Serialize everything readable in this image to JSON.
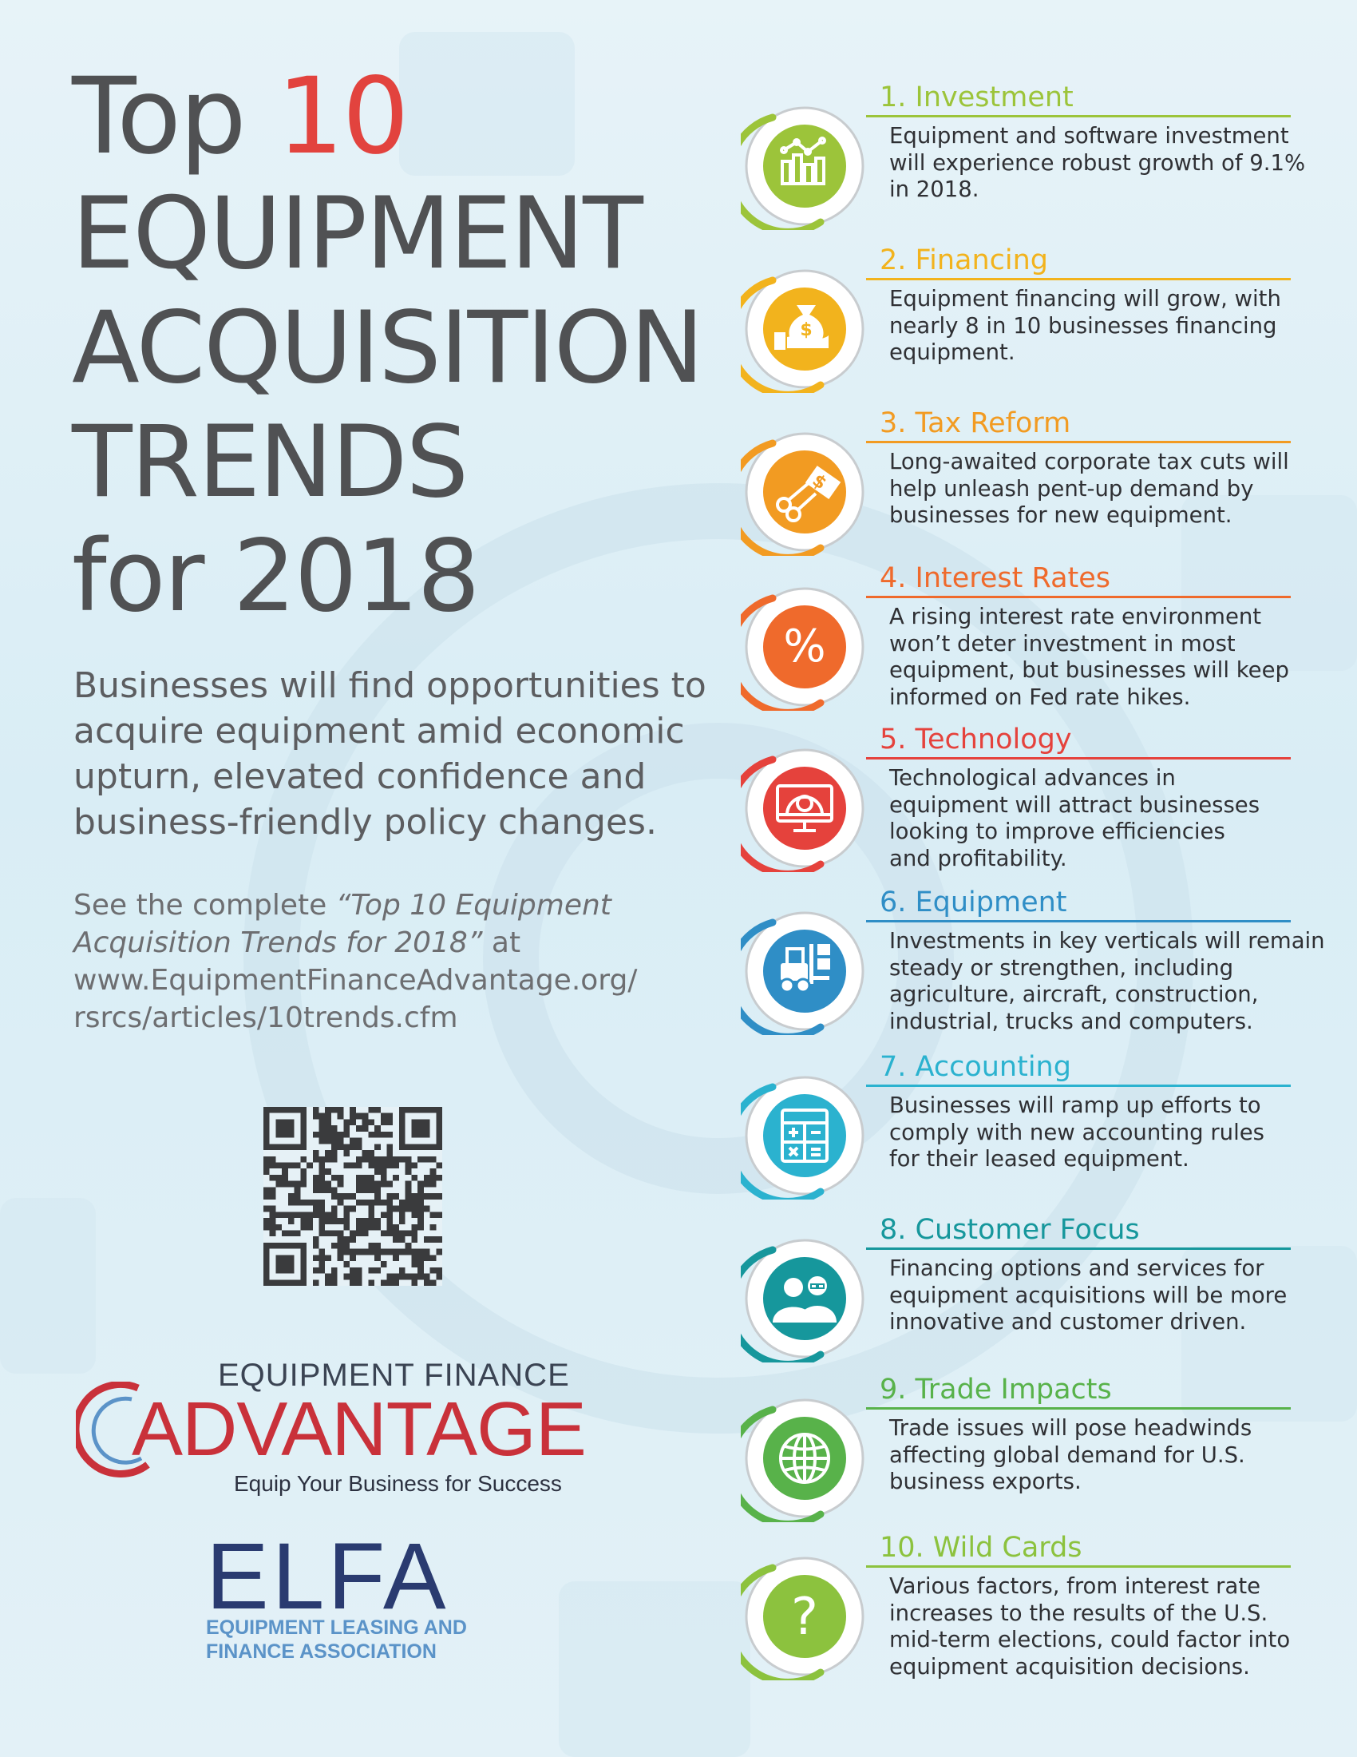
{
  "header": {
    "title_top_word": "Top",
    "title_top_number": "10",
    "title_lines": [
      "EQUIPMENT",
      "ACQUISITION",
      "TRENDS",
      "for 2018"
    ]
  },
  "intro": {
    "lede_lines": [
      "Businesses will find opportunities to",
      "acquire equipment amid economic",
      "upturn, elevated  confidence and",
      "business-friendly policy changes."
    ],
    "see_prefix": "See the complete ",
    "see_title_part1": "“Top 10 Equipment",
    "see_title_part2": "Acquisition Trends for 2018”",
    "see_at": " at",
    "url_line1": "www.EquipmentFinanceAdvantage.org/",
    "url_line2": "rsrcs/articles/10trends.cfm"
  },
  "logos": {
    "efa_top": "EQUIPMENT FINANCE",
    "efa_big": "ADVANTAGE",
    "efa_tagline": "Equip Your Business for Success",
    "elfa_word": "ELFA",
    "elfa_sub_line1": "EQUIPMENT LEASING AND",
    "elfa_sub_line2": "FINANCE ASSOCIATION"
  },
  "colors": {
    "title_gray": "#505153",
    "title_accent": "#e2433e",
    "efa_red": "#c9313a",
    "elfa_navy": "#2a3b70",
    "elfa_blue": "#5b93c8"
  },
  "trends": [
    {
      "title": "1.  Investment",
      "color": "#9cc43a",
      "icon": "bar-chart-icon",
      "desc": [
        "Equipment and software investment",
        "will experience robust growth of 9.1%",
        "in 2018."
      ]
    },
    {
      "title": "2. Financing",
      "color": "#f2b31d",
      "icon": "money-bag-icon",
      "desc": [
        "Equipment financing will grow, with",
        "nearly 8 in 10 businesses financing",
        "equipment."
      ]
    },
    {
      "title": "3. Tax Reform",
      "color": "#f29b22",
      "icon": "scissors-cut-dollar-icon",
      "desc": [
        "Long-awaited corporate tax cuts will",
        "help unleash pent-up demand by",
        "businesses for new equipment."
      ]
    },
    {
      "title": "4. Interest Rates",
      "color": "#ef6a2c",
      "icon": "percent-icon",
      "desc": [
        "A rising interest rate environment",
        "won’t deter investment in most",
        "equipment, but businesses will keep",
        "informed on Fed rate hikes."
      ]
    },
    {
      "title": "5. Technology",
      "color": "#e5423c",
      "icon": "monitor-gear-icon",
      "desc": [
        "Technological advances in",
        "equipment will attract businesses",
        "looking to improve efficiencies",
        "and profitability."
      ]
    },
    {
      "title": "6. Equipment",
      "color": "#2f8ec6",
      "icon": "forklift-icon",
      "desc": [
        "Investments in key verticals will remain",
        "steady or strengthen, including",
        "agriculture, aircraft, construction,",
        "industrial, trucks and computers."
      ]
    },
    {
      "title": "7. Accounting",
      "color": "#2bb2cf",
      "icon": "calculator-icon",
      "desc": [
        "Businesses will ramp up efforts to",
        "comply with new accounting rules",
        "for their leased equipment."
      ]
    },
    {
      "title": "8. Customer Focus",
      "color": "#16979c",
      "icon": "people-icon",
      "desc": [
        "Financing options and services for",
        "equipment acquisitions will be more",
        "innovative and customer driven."
      ]
    },
    {
      "title": "9. Trade Impacts",
      "color": "#58b24a",
      "icon": "globe-icon",
      "desc": [
        "Trade issues will pose headwinds",
        "affecting global demand for U.S.",
        "business exports."
      ]
    },
    {
      "title": "10. Wild Cards",
      "color": "#8cc23e",
      "icon": "question-mark-icon",
      "desc": [
        "Various factors, from interest rate",
        "increases to the results of the U.S.",
        "mid-term elections, could factor into",
        "equipment acquisition decisions."
      ]
    }
  ]
}
